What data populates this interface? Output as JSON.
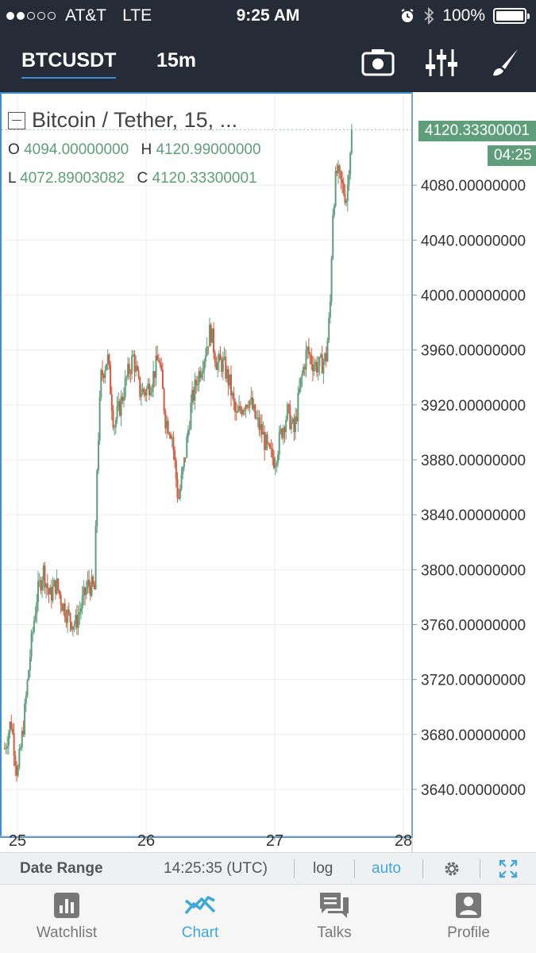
{
  "status_bar": {
    "carrier": "AT&T",
    "network": "LTE",
    "time": "9:25 AM",
    "battery": "100%",
    "signal_bars_on": 2,
    "signal_bars_total": 5,
    "icons": [
      "alarm-icon",
      "bluetooth-icon",
      "battery-icon"
    ]
  },
  "toolbar": {
    "symbol": "BTCUSDT",
    "interval": "15m",
    "icons": [
      "camera-icon",
      "sliders-icon",
      "brush-icon"
    ]
  },
  "legend": {
    "title": "Bitcoin / Tether, 15, ...",
    "o_label": "O",
    "o_value": "4094.00000000",
    "h_label": "H",
    "h_value": "4120.99000000",
    "l_label": "L",
    "l_value": "4072.89003082",
    "c_label": "C",
    "c_value": "4120.33300001"
  },
  "price_axis": {
    "last_price": "4120.33300001",
    "countdown": "04:25",
    "ticks": [
      "4080.00000000",
      "4040.00000000",
      "4000.00000000",
      "3960.00000000",
      "3920.00000000",
      "3880.00000000",
      "3840.00000000",
      "3800.00000000",
      "3760.00000000",
      "3720.00000000",
      "3680.00000000",
      "3640.00000000"
    ]
  },
  "colors": {
    "up": "#5e9e7b",
    "down": "#d45a3c",
    "accent": "#3ea8d9",
    "header_bg": "#262b38"
  },
  "chart_data": {
    "type": "candlestick",
    "title": "Bitcoin / Tether, 15, ...",
    "x_ticks": [
      "25",
      "26",
      "27",
      "28"
    ],
    "x_range": [
      24.9,
      28.0
    ],
    "y_range": [
      3610,
      4140
    ],
    "grid": true,
    "last_close": 4120.333,
    "path_points": [
      [
        24.9,
        3670
      ],
      [
        24.95,
        3690
      ],
      [
        25.0,
        3650
      ],
      [
        25.05,
        3690
      ],
      [
        25.1,
        3740
      ],
      [
        25.15,
        3780
      ],
      [
        25.2,
        3800
      ],
      [
        25.25,
        3780
      ],
      [
        25.3,
        3790
      ],
      [
        25.35,
        3775
      ],
      [
        25.4,
        3765
      ],
      [
        25.45,
        3760
      ],
      [
        25.5,
        3775
      ],
      [
        25.55,
        3790
      ],
      [
        25.6,
        3785
      ],
      [
        25.62,
        3880
      ],
      [
        25.65,
        3940
      ],
      [
        25.7,
        3955
      ],
      [
        25.75,
        3905
      ],
      [
        25.8,
        3920
      ],
      [
        25.85,
        3940
      ],
      [
        25.9,
        3955
      ],
      [
        25.95,
        3930
      ],
      [
        26.0,
        3930
      ],
      [
        26.05,
        3940
      ],
      [
        26.1,
        3955
      ],
      [
        26.15,
        3910
      ],
      [
        26.2,
        3900
      ],
      [
        26.25,
        3850
      ],
      [
        26.3,
        3880
      ],
      [
        26.35,
        3920
      ],
      [
        26.4,
        3940
      ],
      [
        26.45,
        3955
      ],
      [
        26.5,
        3975
      ],
      [
        26.55,
        3950
      ],
      [
        26.6,
        3950
      ],
      [
        26.65,
        3935
      ],
      [
        26.7,
        3910
      ],
      [
        26.75,
        3920
      ],
      [
        26.8,
        3925
      ],
      [
        26.85,
        3910
      ],
      [
        26.9,
        3900
      ],
      [
        26.95,
        3885
      ],
      [
        27.0,
        3880
      ],
      [
        27.05,
        3900
      ],
      [
        27.1,
        3915
      ],
      [
        27.15,
        3900
      ],
      [
        27.2,
        3935
      ],
      [
        27.25,
        3960
      ],
      [
        27.3,
        3950
      ],
      [
        27.35,
        3948
      ],
      [
        27.4,
        3955
      ],
      [
        27.43,
        3990
      ],
      [
        27.45,
        4060
      ],
      [
        27.48,
        4090
      ],
      [
        27.52,
        4080
      ],
      [
        27.56,
        4070
      ],
      [
        27.58,
        4100
      ],
      [
        27.6,
        4120
      ]
    ]
  },
  "range_bar": {
    "date_range": "Date Range",
    "time": "14:25:35 (UTC)",
    "log": "log",
    "auto": "auto",
    "icons": [
      "gear-icon",
      "fullscreen-icon"
    ]
  },
  "tabs": [
    {
      "label": "Watchlist",
      "icon": "bar-chart-icon",
      "active": false
    },
    {
      "label": "Chart",
      "icon": "line-chart-icon",
      "active": true
    },
    {
      "label": "Talks",
      "icon": "chat-icon",
      "active": false
    },
    {
      "label": "Profile",
      "icon": "person-icon",
      "active": false
    }
  ]
}
